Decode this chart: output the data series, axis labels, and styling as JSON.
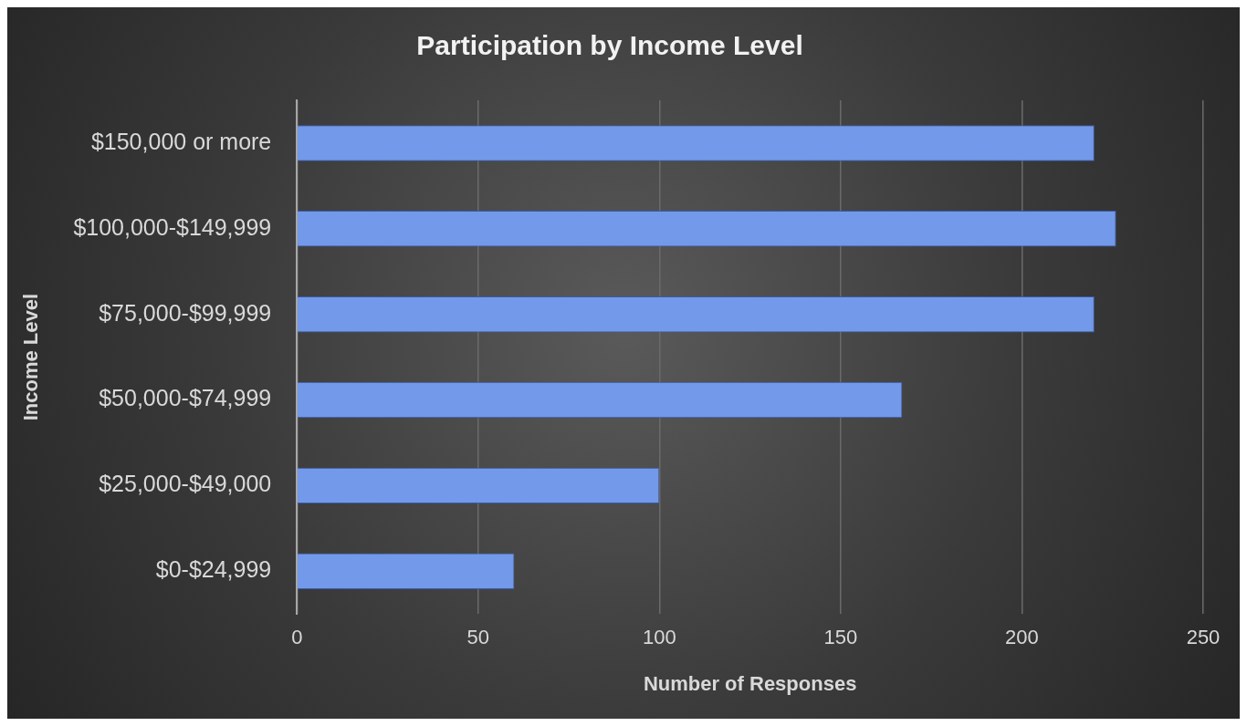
{
  "chart_data": {
    "type": "bar",
    "orientation": "horizontal",
    "title": "Participation by Income Level",
    "xlabel": "Number of Responses",
    "ylabel": "Income Level",
    "categories": [
      "$150,000 or more",
      "$100,000-$149,999",
      "$75,000-$99,999",
      "$50,000-$74,999",
      "$25,000-$49,000",
      "$0-$24,999"
    ],
    "values": [
      220,
      226,
      220,
      167,
      100,
      60
    ],
    "color": "#7399ea",
    "xlim": [
      0,
      250
    ],
    "xticks": [
      0,
      50,
      100,
      150,
      200,
      250
    ],
    "grid": "x",
    "legend": false
  }
}
